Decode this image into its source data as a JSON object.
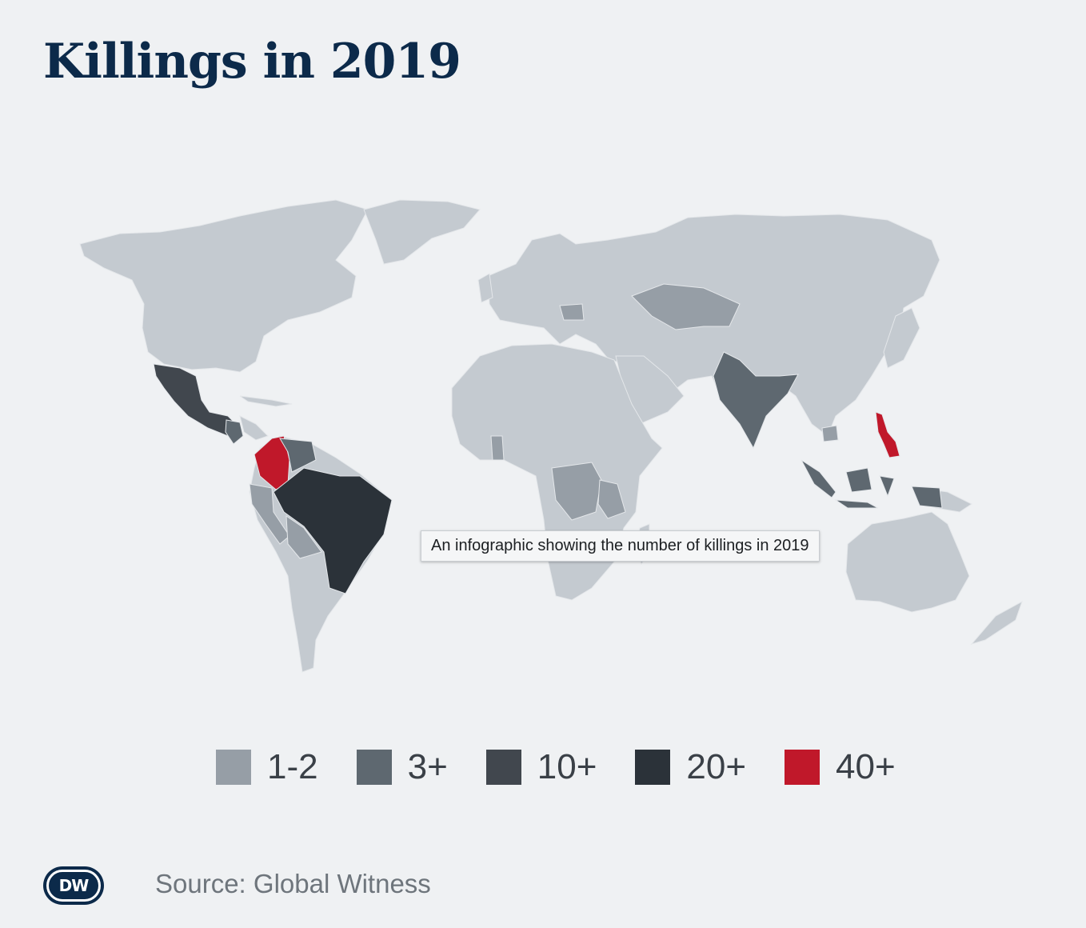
{
  "title": "Killings in 2019",
  "tooltip": "An infographic showing the number of killings in 2019",
  "legend": [
    {
      "label": "1-2",
      "color": "#969ea6"
    },
    {
      "label": "3+",
      "color": "#5e6870"
    },
    {
      "label": "10+",
      "color": "#41474e"
    },
    {
      "label": "20+",
      "color": "#2b3239"
    },
    {
      "label": "40+",
      "color": "#c0182a"
    }
  ],
  "base_land_color": "#c4cad0",
  "highlighted_regions": [
    {
      "name": "Colombia",
      "category": "40+"
    },
    {
      "name": "Philippines",
      "category": "40+"
    },
    {
      "name": "Brazil",
      "category": "20+"
    },
    {
      "name": "Mexico",
      "category": "10+"
    },
    {
      "name": "Honduras",
      "category": "10+"
    },
    {
      "name": "Indonesia",
      "category": "3+"
    },
    {
      "name": "India",
      "category": "3+"
    },
    {
      "name": "Venezuela",
      "category": "3+"
    },
    {
      "name": "Guatemala",
      "category": "3+"
    },
    {
      "name": "Kazakhstan",
      "category": "1-2"
    },
    {
      "name": "Romania",
      "category": "1-2"
    },
    {
      "name": "DR Congo",
      "category": "1-2"
    },
    {
      "name": "Peru",
      "category": "1-2"
    },
    {
      "name": "Bolivia",
      "category": "1-2"
    },
    {
      "name": "Ghana",
      "category": "1-2"
    },
    {
      "name": "Tanzania",
      "category": "1-2"
    },
    {
      "name": "Cambodia",
      "category": "1-2"
    }
  ],
  "source": "Source: Global Witness",
  "logo_text": "DW"
}
